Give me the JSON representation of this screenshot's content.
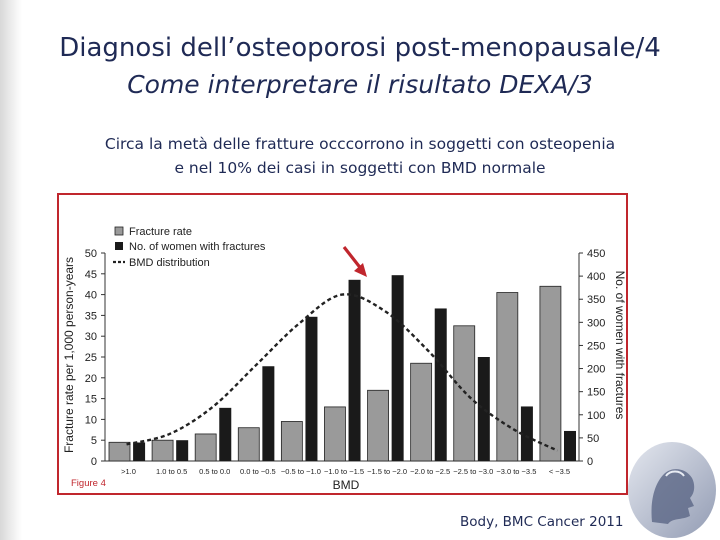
{
  "slide": {
    "title_line1": "Diagnosi dell’osteoporosi post-menopausale/4",
    "title_line2": "Come interpretare il risultato DEXA/3",
    "subtitle_line1": "Circa la metà delle fratture occcorrono in soggetti con osteopenia",
    "subtitle_line2": "e nel 10% dei casi in soggetti con BMD normale",
    "source": "Body,  BMC Cancer 2011"
  },
  "colors": {
    "title": "#1f2a55",
    "frame": "#c0262d",
    "arrow": "#c0262d",
    "fracture_rate_bar": "#9a9a9a",
    "women_bar": "#1a1a1a"
  },
  "chart_data": {
    "type": "bar",
    "xlabel": "BMD",
    "ylabel_left": "Fracture rate per 1,000 person-years",
    "ylabel_right": "No. of women with fractures",
    "figure_label": "Figure 4",
    "categories": [
      ">1.0",
      "1.0 to 0.5",
      "0.5 to 0.0",
      "0.0 to −0.5",
      "−0.5 to −1.0",
      "−1.0 to −1.5",
      "−1.5 to −2.0",
      "−2.0 to −2.5",
      "−2.5 to −3.0",
      "−3.0 to −3.5",
      "< −3.5"
    ],
    "ylim_left": [
      0,
      50
    ],
    "ylim_right": [
      0,
      450
    ],
    "yticks_left": [
      "0",
      "5",
      "10",
      "15",
      "20",
      "25",
      "30",
      "35",
      "40",
      "45",
      "50"
    ],
    "yticks_right": [
      "0",
      "50",
      "100",
      "150",
      "200",
      "250",
      "300",
      "350",
      "400",
      "450"
    ],
    "legend_position": "top-left",
    "series": [
      {
        "name": "Fracture rate",
        "kind": "bar",
        "axis": "left",
        "values": [
          4.5,
          5,
          6.5,
          8,
          9.5,
          13,
          17,
          23.5,
          32.5,
          40.5,
          42
        ]
      },
      {
        "name": "No. of women with fractures",
        "kind": "bar",
        "axis": "right",
        "values": [
          40,
          45,
          115,
          205,
          312,
          392,
          402,
          330,
          225,
          118,
          65
        ]
      },
      {
        "name": "BMD distribution",
        "kind": "line",
        "style": "dashed",
        "values": [
          4,
          6.5,
          13,
          23,
          33,
          40,
          36,
          26.5,
          15,
          7.5,
          2.5
        ]
      }
    ]
  }
}
